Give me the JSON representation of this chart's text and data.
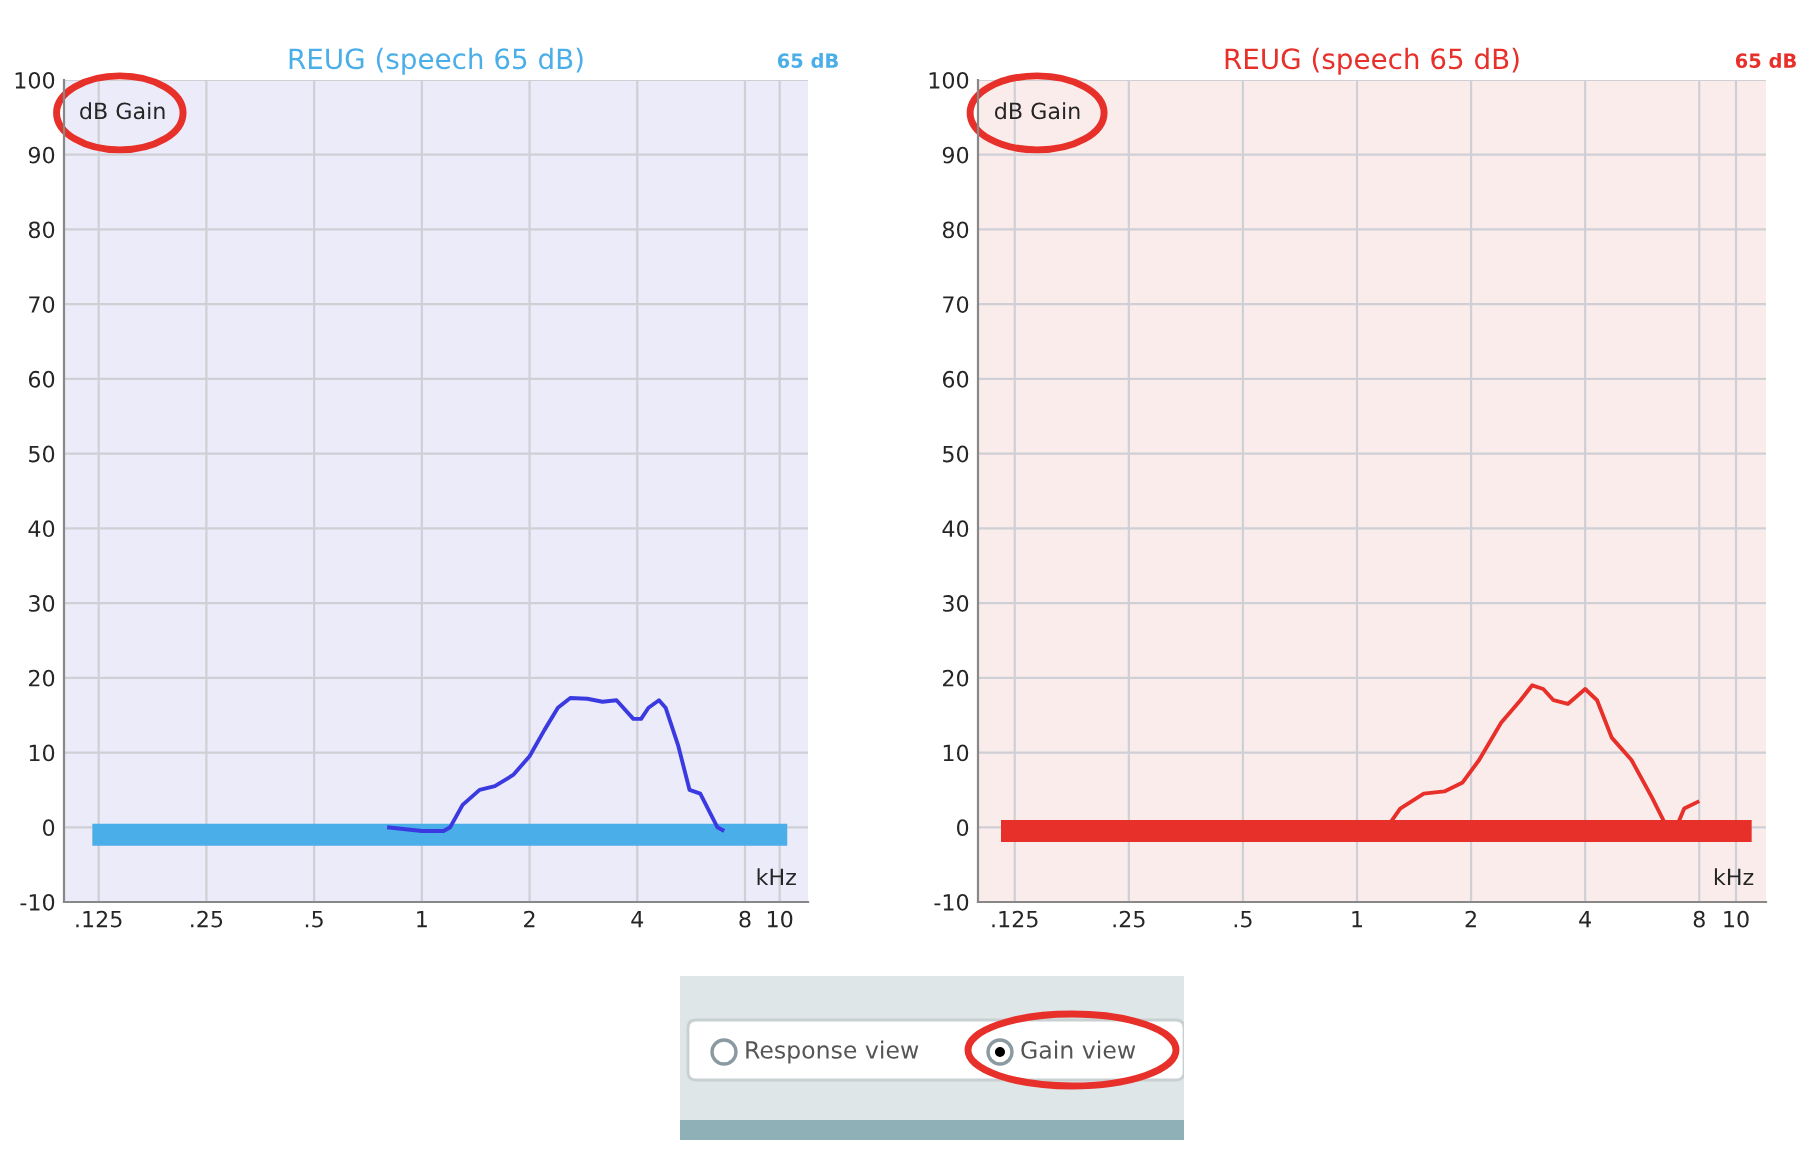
{
  "chart_data": [
    {
      "type": "line",
      "title": "REUG (speech 65 dB)",
      "xlabel": "kHz",
      "ylabel": "dB Gain",
      "annotations": [
        "65 dB"
      ],
      "log": "x",
      "xlim": [
        0.1,
        12
      ],
      "xticks": [
        {
          "value": 0.125,
          "label": ".125"
        },
        {
          "value": 0.25,
          "label": ".25"
        },
        {
          "value": 0.5,
          "label": ".5"
        },
        1,
        2,
        4,
        8,
        10
      ],
      "ylim": [
        -10,
        100
      ],
      "yticks": [
        -10,
        0,
        10,
        20,
        30,
        40,
        50,
        60,
        70,
        80,
        90,
        100
      ],
      "grid": true,
      "series": [
        {
          "color": "#4aaee8",
          "x": [
            0.12,
            10.5
          ],
          "values": [
            -1,
            -1
          ]
        },
        {
          "color": "#3a3ae0",
          "x": [
            0.8,
            1.0,
            1.15,
            1.2,
            1.3,
            1.45,
            1.6,
            1.8,
            2.0,
            2.2,
            2.4,
            2.6,
            2.9,
            3.2,
            3.5,
            3.9,
            4.1,
            4.3,
            4.6,
            4.8,
            5.2,
            5.6,
            6.0,
            6.7,
            7.0
          ],
          "values": [
            0,
            -0.5,
            -0.5,
            0,
            3,
            5,
            5.5,
            7,
            9.5,
            13,
            16,
            17.3,
            17.2,
            16.8,
            17,
            14.5,
            14.5,
            16,
            17,
            16,
            11,
            5,
            4.5,
            0,
            -0.5
          ]
        }
      ]
    },
    {
      "type": "line",
      "title": "REUG (speech 65 dB)",
      "xlabel": "kHz",
      "ylabel": "dB Gain",
      "annotations": [
        "65 dB"
      ],
      "log": "x",
      "xlim": [
        0.1,
        12
      ],
      "xticks": [
        {
          "value": 0.125,
          "label": ".125"
        },
        {
          "value": 0.25,
          "label": ".25"
        },
        {
          "value": 0.5,
          "label": ".5"
        },
        1,
        2,
        4,
        8,
        10
      ],
      "ylim": [
        -10,
        100
      ],
      "yticks": [
        -10,
        0,
        10,
        20,
        30,
        40,
        50,
        60,
        70,
        80,
        90,
        100
      ],
      "grid": true,
      "series": [
        {
          "color": "#e8302a",
          "x": [
            0.115,
            11
          ],
          "values": [
            -0.5,
            -0.5
          ]
        },
        {
          "color": "#e8302a",
          "x": [
            0.45,
            0.55,
            0.9,
            1.0,
            1.1,
            1.2,
            1.3,
            1.5,
            1.7,
            1.9,
            2.1,
            2.4,
            2.7,
            2.9,
            3.1,
            3.3,
            3.6,
            4.0,
            4.3,
            4.7,
            5.3,
            6.0,
            6.5,
            7.0,
            7.3,
            8.0
          ],
          "values": [
            -1.5,
            -1.5,
            0,
            0,
            -1,
            0,
            2.5,
            4.5,
            4.8,
            6,
            9,
            14,
            17,
            19,
            18.5,
            17,
            16.5,
            18.5,
            17,
            12,
            9,
            4,
            0.5,
            0.3,
            2.5,
            3.5
          ]
        }
      ]
    },
    {
      "type": "other",
      "annotations": [
        "Response view",
        "Gain view"
      ]
    }
  ]
}
